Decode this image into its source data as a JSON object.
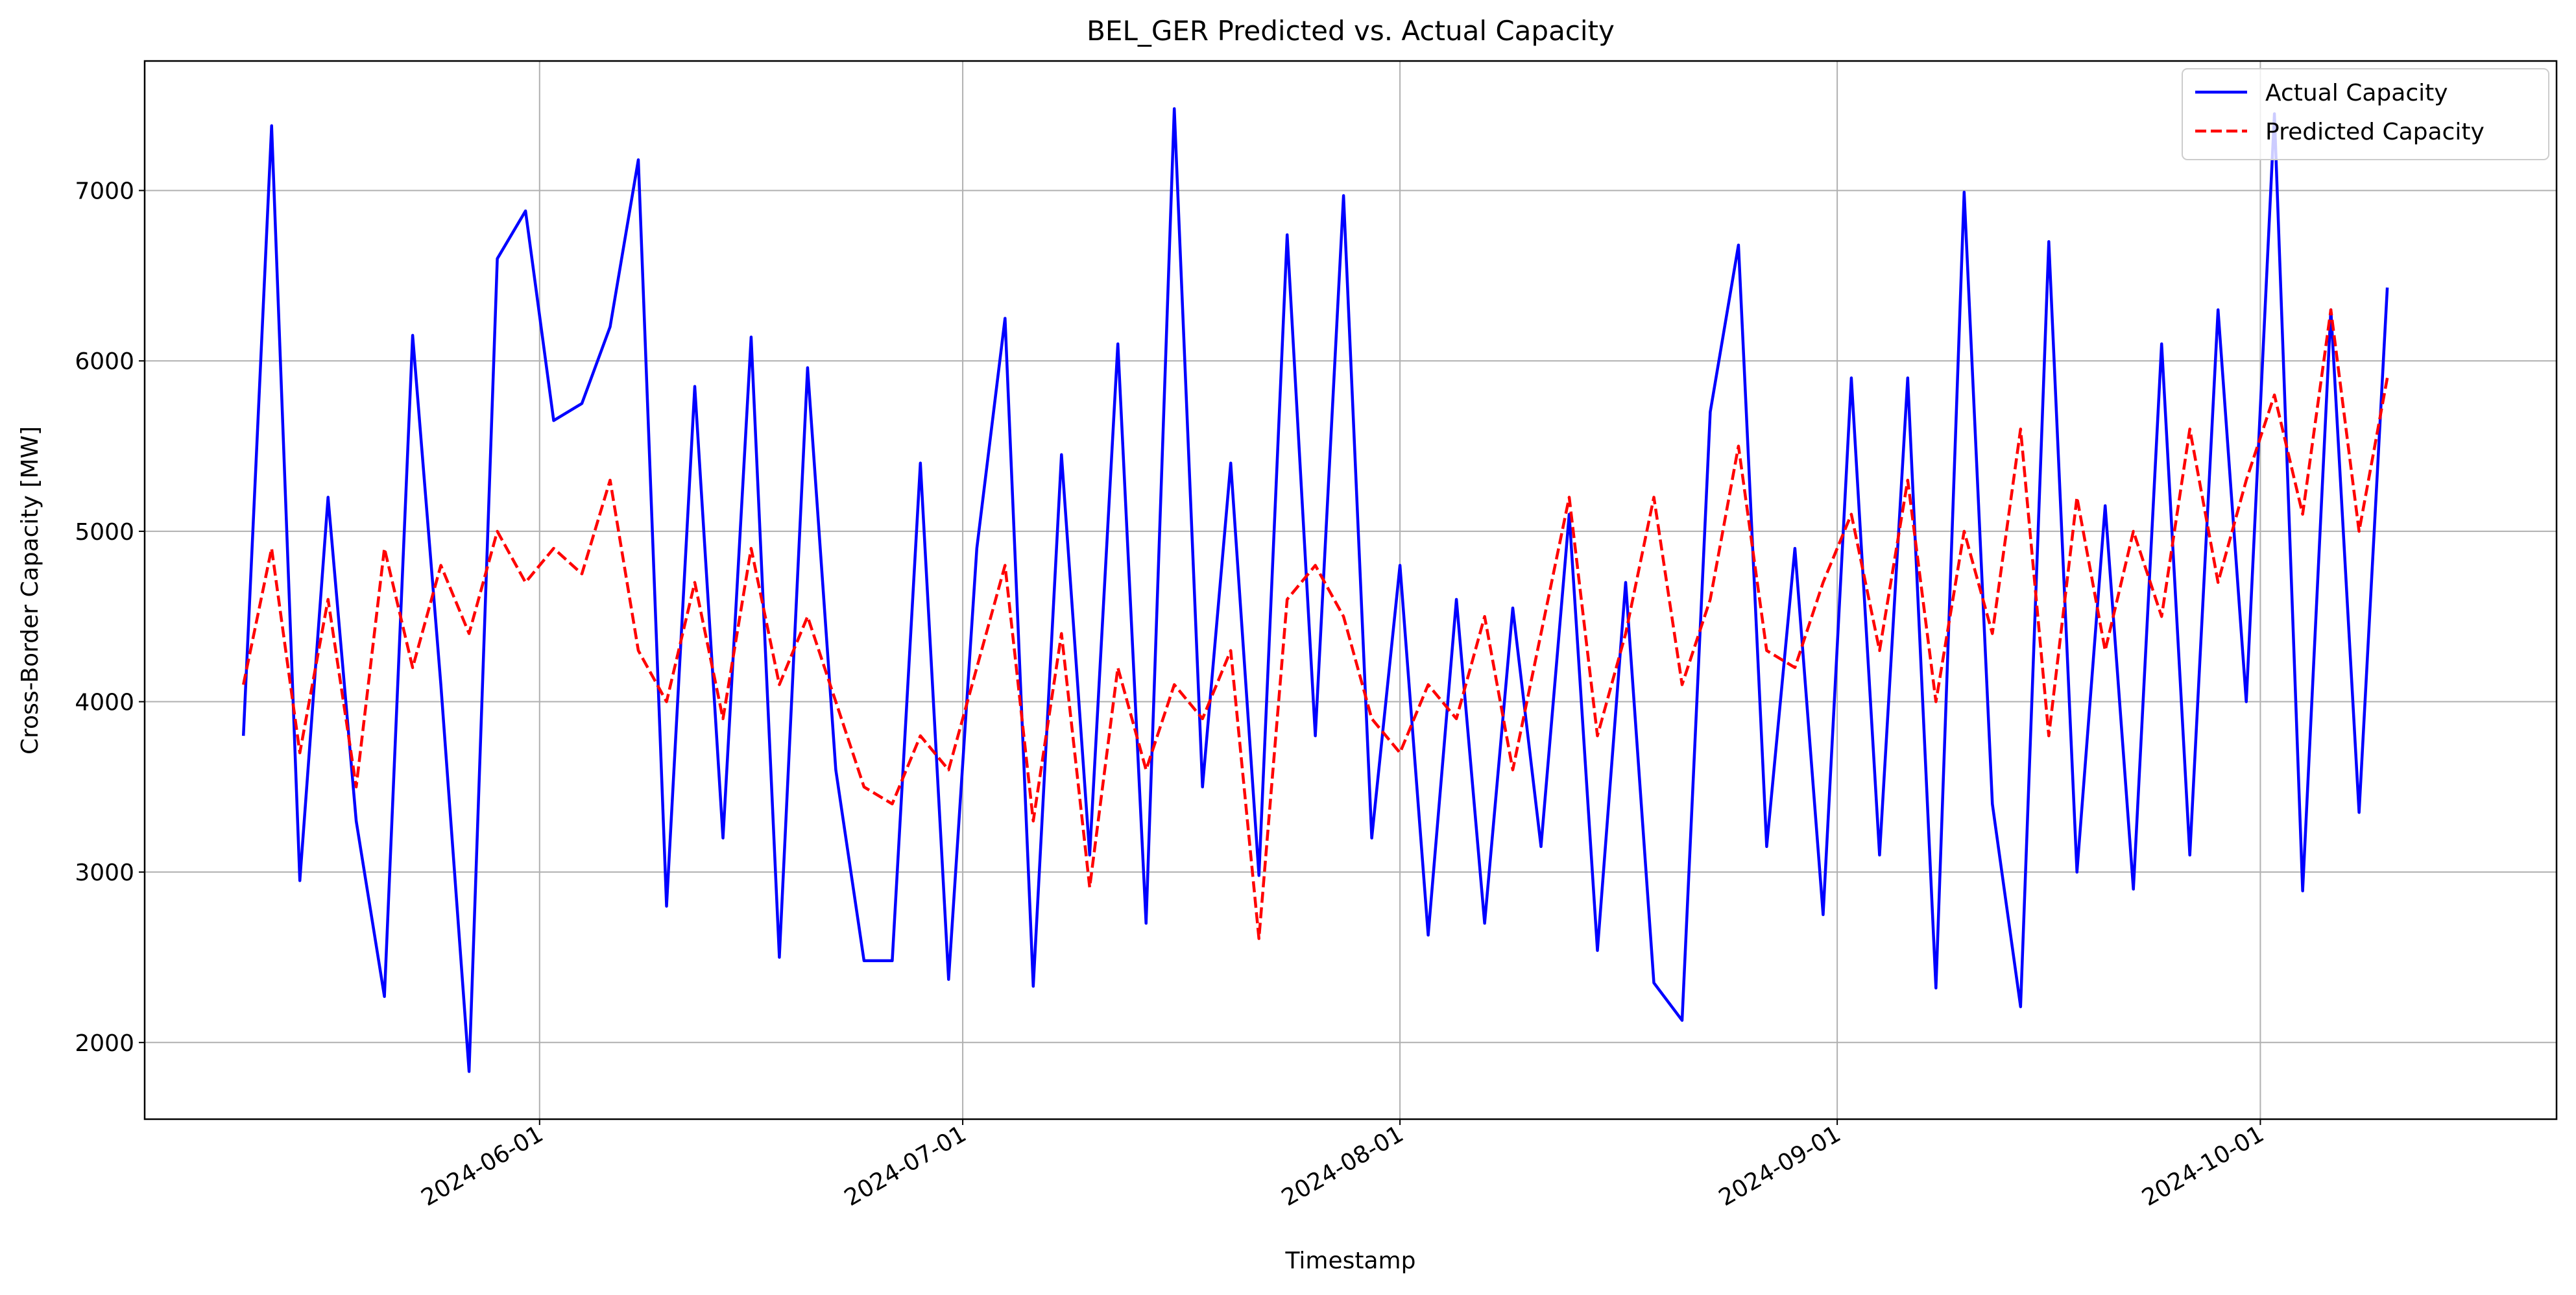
{
  "chart_data": {
    "type": "line",
    "title": "BEL_GER Predicted vs. Actual Capacity",
    "x_label": "Timestamp",
    "y_label": "Cross-Border Capacity [MW]",
    "x": [
      "2024-05-11",
      "2024-05-13",
      "2024-05-15",
      "2024-05-17",
      "2024-05-19",
      "2024-05-21",
      "2024-05-23",
      "2024-05-25",
      "2024-05-27",
      "2024-05-29",
      "2024-05-31",
      "2024-06-02",
      "2024-06-04",
      "2024-06-06",
      "2024-06-08",
      "2024-06-10",
      "2024-06-12",
      "2024-06-14",
      "2024-06-16",
      "2024-06-18",
      "2024-06-20",
      "2024-06-22",
      "2024-06-24",
      "2024-06-26",
      "2024-06-28",
      "2024-06-30",
      "2024-07-02",
      "2024-07-04",
      "2024-07-06",
      "2024-07-08",
      "2024-07-10",
      "2024-07-12",
      "2024-07-14",
      "2024-07-16",
      "2024-07-18",
      "2024-07-20",
      "2024-07-22",
      "2024-07-24",
      "2024-07-26",
      "2024-07-28",
      "2024-07-30",
      "2024-08-01",
      "2024-08-03",
      "2024-08-05",
      "2024-08-07",
      "2024-08-09",
      "2024-08-11",
      "2024-08-13",
      "2024-08-15",
      "2024-08-17",
      "2024-08-19",
      "2024-08-21",
      "2024-08-23",
      "2024-08-25",
      "2024-08-27",
      "2024-08-29",
      "2024-08-31",
      "2024-09-02",
      "2024-09-04",
      "2024-09-06",
      "2024-09-08",
      "2024-09-10",
      "2024-09-12",
      "2024-09-14",
      "2024-09-16",
      "2024-09-18",
      "2024-09-20",
      "2024-09-22",
      "2024-09-24",
      "2024-09-26",
      "2024-09-28",
      "2024-09-30",
      "2024-10-02",
      "2024-10-04",
      "2024-10-06",
      "2024-10-08",
      "2024-10-10"
    ],
    "series": [
      {
        "name": "Actual Capacity",
        "color": "#0000ff",
        "linestyle": "solid",
        "values": [
          3800,
          7380,
          2950,
          5200,
          3300,
          2270,
          6150,
          4100,
          1830,
          6600,
          6880,
          5650,
          5750,
          6200,
          7180,
          2800,
          5850,
          3200,
          6140,
          2500,
          5960,
          3600,
          2480,
          2480,
          5400,
          2370,
          4900,
          6250,
          2330,
          5450,
          3100,
          6100,
          2700,
          7480,
          3500,
          5400,
          2980,
          6740,
          3800,
          6970,
          3200,
          4800,
          2630,
          4600,
          2700,
          4550,
          3150,
          5100,
          2540,
          4700,
          2350,
          2130,
          5700,
          6680,
          3150,
          4900,
          2750,
          5900,
          3100,
          5900,
          2320,
          6990,
          3400,
          2210,
          6700,
          3000,
          5150,
          2900,
          6100,
          3100,
          6300,
          4000,
          7450,
          2890,
          6300,
          3350,
          6430
        ]
      },
      {
        "name": "Predicted Capacity",
        "color": "#ff0000",
        "linestyle": "dashed",
        "values": [
          4100,
          4900,
          3700,
          4600,
          3500,
          4900,
          4200,
          4800,
          4400,
          5000,
          4700,
          4900,
          4750,
          5300,
          4300,
          4000,
          4700,
          3900,
          4900,
          4100,
          4500,
          4000,
          3500,
          3400,
          3800,
          3600,
          4200,
          4800,
          3300,
          4400,
          2910,
          4200,
          3600,
          4100,
          3900,
          4300,
          2610,
          4600,
          4800,
          4500,
          3900,
          3700,
          4100,
          3900,
          4500,
          3600,
          4400,
          5200,
          3800,
          4400,
          5200,
          4100,
          4600,
          5500,
          4300,
          4200,
          4700,
          5100,
          4300,
          5300,
          4000,
          5000,
          4400,
          5600,
          3800,
          5200,
          4300,
          5000,
          4500,
          5600,
          4700,
          5300,
          5800,
          5100,
          6300,
          5000,
          5900
        ]
      }
    ],
    "xlim": [
      "2024-05-04",
      "2024-10-22"
    ],
    "xticks": [
      "2024-06-01",
      "2024-07-01",
      "2024-08-01",
      "2024-09-01",
      "2024-10-01"
    ],
    "ylim": [
      1550,
      7760
    ],
    "yticks": [
      2000,
      3000,
      4000,
      5000,
      6000,
      7000
    ],
    "grid": true,
    "legend": "upper right"
  }
}
